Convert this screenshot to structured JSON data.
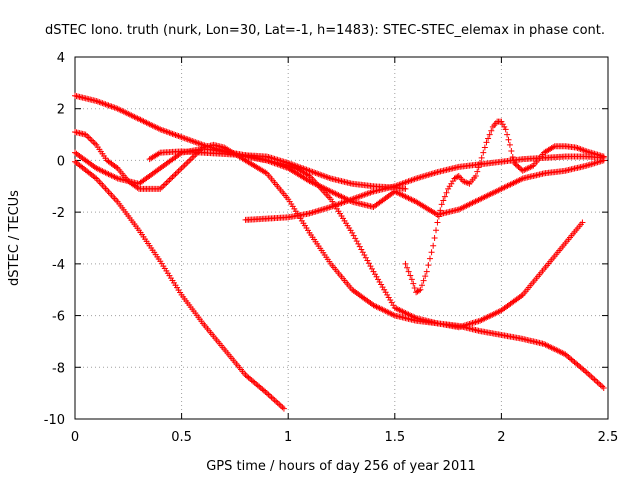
{
  "chart_data": {
    "type": "scatter",
    "title": "dSTEC Iono. truth (nurk, Lon=30, Lat=-1, h=1483): STEC-STEC_elemax in phase cont.",
    "xlabel": "GPS time / hours of day 256 of year 2011",
    "ylabel": "dSTEC  / TECUs",
    "xlim": [
      0,
      2.5
    ],
    "ylim": [
      -10,
      4
    ],
    "xticks": [
      0,
      0.5,
      1,
      1.5,
      2,
      2.5
    ],
    "xtick_labels": [
      "0",
      "0.5",
      "1",
      "1.5",
      "2",
      "2.5"
    ],
    "yticks": [
      -10,
      -8,
      -6,
      -4,
      -2,
      0,
      2,
      4
    ],
    "ytick_labels": [
      "-10",
      "-8",
      "-6",
      "-4",
      "-2",
      "0",
      "2",
      "4"
    ],
    "grid": true,
    "marker": "plus",
    "color": "#ff0000",
    "series": [
      {
        "x": [
          0.0,
          0.1,
          0.2,
          0.3,
          0.4,
          0.5,
          0.6,
          0.7,
          0.8,
          0.9,
          0.98
        ],
        "y": [
          -0.05,
          -0.7,
          -1.6,
          -2.7,
          -3.9,
          -5.2,
          -6.3,
          -7.3,
          -8.3,
          -9.0,
          -9.6
        ]
      },
      {
        "x": [
          0.0,
          0.1,
          0.2,
          0.3,
          0.4,
          0.5,
          0.6,
          0.7,
          0.8,
          0.9,
          1.0,
          1.05,
          1.1,
          1.2,
          1.3,
          1.4,
          1.5,
          1.6,
          1.7,
          1.8,
          1.9,
          2.0,
          2.1,
          2.2,
          2.3,
          2.4,
          2.48
        ],
        "y": [
          2.5,
          2.3,
          2.0,
          1.6,
          1.2,
          0.9,
          0.6,
          0.35,
          0.15,
          0.0,
          -0.2,
          -0.35,
          -0.6,
          -1.5,
          -2.8,
          -4.3,
          -5.7,
          -6.1,
          -6.3,
          -6.4,
          -6.6,
          -6.75,
          -6.9,
          -7.1,
          -7.5,
          -8.2,
          -8.8
        ]
      },
      {
        "x": [
          0.0,
          0.05,
          0.1,
          0.15,
          0.2,
          0.25,
          0.3,
          0.35,
          0.4,
          0.5,
          0.6,
          0.65,
          0.7,
          0.8,
          0.9,
          1.0,
          1.1,
          1.2,
          1.3,
          1.4,
          1.5,
          1.6,
          1.7,
          1.8,
          1.9,
          2.0,
          2.1,
          2.2,
          2.3,
          2.38
        ],
        "y": [
          1.1,
          1.0,
          0.6,
          0.0,
          -0.3,
          -0.8,
          -1.1,
          -1.1,
          -1.1,
          -0.3,
          0.5,
          0.6,
          0.5,
          0.0,
          -0.5,
          -1.5,
          -2.8,
          -4.0,
          -5.0,
          -5.6,
          -6.0,
          -6.2,
          -6.3,
          -6.45,
          -6.2,
          -5.8,
          -5.2,
          -4.2,
          -3.2,
          -2.4
        ]
      },
      {
        "x": [
          0.0,
          0.1,
          0.2,
          0.3,
          0.4,
          0.5,
          0.6,
          0.7,
          0.8,
          0.9,
          1.0,
          1.1,
          1.2,
          1.3,
          1.4,
          1.5,
          1.6,
          1.7,
          1.8,
          1.9,
          2.0,
          2.1,
          2.2,
          2.3,
          2.4,
          2.48
        ],
        "y": [
          0.3,
          -0.3,
          -0.7,
          -0.9,
          -0.3,
          0.3,
          0.45,
          0.35,
          0.2,
          0.0,
          -0.3,
          -0.8,
          -1.2,
          -1.6,
          -1.8,
          -1.2,
          -1.6,
          -2.1,
          -1.9,
          -1.5,
          -1.1,
          -0.7,
          -0.5,
          -0.4,
          -0.2,
          0.0
        ]
      },
      {
        "x": [
          0.8,
          0.9,
          1.0,
          1.1,
          1.2,
          1.3,
          1.4,
          1.5,
          1.6,
          1.7,
          1.8,
          1.9,
          2.0,
          2.1,
          2.2,
          2.3,
          2.4,
          2.48
        ],
        "y": [
          -2.3,
          -2.25,
          -2.2,
          -2.05,
          -1.8,
          -1.5,
          -1.2,
          -1.0,
          -0.7,
          -0.45,
          -0.25,
          -0.15,
          -0.05,
          0.05,
          0.1,
          0.15,
          0.15,
          0.1
        ]
      },
      {
        "x": [
          0.35,
          0.4,
          0.5,
          0.6,
          0.7,
          0.8,
          0.9,
          1.0,
          1.1,
          1.2,
          1.3,
          1.4,
          1.5,
          1.55
        ],
        "y": [
          0.05,
          0.3,
          0.35,
          0.3,
          0.25,
          0.2,
          0.15,
          -0.1,
          -0.4,
          -0.7,
          -0.9,
          -1.0,
          -1.05,
          -1.1
        ]
      },
      {
        "x": [
          1.55,
          1.58,
          1.6,
          1.62,
          1.65,
          1.68,
          1.7,
          1.72,
          1.75,
          1.78,
          1.8,
          1.82,
          1.85,
          1.88,
          1.9,
          1.93,
          1.96,
          1.98,
          2.0,
          2.02,
          2.04,
          2.06,
          2.1,
          2.15,
          2.2,
          2.25,
          2.3,
          2.35,
          2.4,
          2.48
        ],
        "y": [
          -4.0,
          -4.6,
          -5.1,
          -5.0,
          -4.3,
          -3.3,
          -2.4,
          -1.7,
          -1.1,
          -0.7,
          -0.6,
          -0.8,
          -0.9,
          -0.6,
          -0.1,
          0.7,
          1.3,
          1.5,
          1.5,
          1.2,
          0.6,
          -0.1,
          -0.4,
          -0.2,
          0.3,
          0.55,
          0.55,
          0.5,
          0.35,
          0.15
        ]
      }
    ]
  }
}
